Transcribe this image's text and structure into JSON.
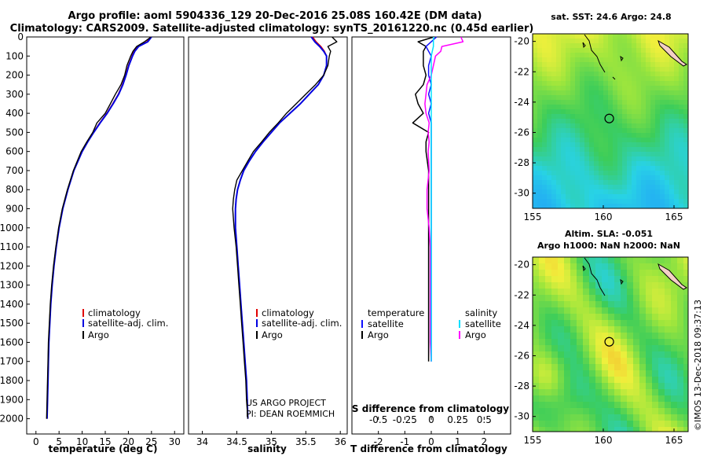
{
  "title": {
    "line1": "Argo profile: aoml 5904336_129 20-Dec-2016 25.08S 160.42E (DM data)",
    "line2": "Climatology: CARS2009. Satellite-adjusted climatology: synTS_20161220.nc (0.45d earlier)"
  },
  "colors": {
    "climatology": "#e00000",
    "satellite": "#0000e0",
    "argo": "#000000",
    "temp_diff": "#000000",
    "sat_temp_diff": "#1010ff",
    "sal_diff": "#ff00ff",
    "sat_sal_diff": "#00e0ff"
  },
  "chart_data": [
    {
      "type": "line",
      "name": "temperature",
      "xlabel": "temperature (deg C)",
      "ylabel": "depth",
      "xlim": [
        -2,
        32
      ],
      "ylim": [
        0,
        2080
      ],
      "xticks": [
        0,
        5,
        10,
        15,
        20,
        25,
        30
      ],
      "yticks": [
        0,
        100,
        200,
        300,
        400,
        500,
        600,
        700,
        800,
        900,
        1000,
        1100,
        1200,
        1300,
        1400,
        1500,
        1600,
        1700,
        1800,
        1900,
        2000
      ],
      "depth": [
        0,
        25,
        50,
        75,
        100,
        150,
        200,
        250,
        300,
        350,
        400,
        450,
        500,
        550,
        600,
        700,
        800,
        900,
        1000,
        1100,
        1200,
        1300,
        1400,
        1500,
        1600,
        1700,
        1800,
        1900,
        2000
      ],
      "series": [
        {
          "name": "climatology",
          "values": [
            24.8,
            24.0,
            22.0,
            21.2,
            20.8,
            20.0,
            19.4,
            18.7,
            17.8,
            16.6,
            15.3,
            13.8,
            12.4,
            11.2,
            10.0,
            8.2,
            6.9,
            5.8,
            5.0,
            4.4,
            3.9,
            3.5,
            3.2,
            3.0,
            2.8,
            2.7,
            2.6,
            2.5,
            2.4
          ]
        },
        {
          "name": "satellite-adj. clim.",
          "values": [
            25.0,
            24.2,
            22.2,
            21.4,
            20.9,
            20.1,
            19.5,
            18.8,
            17.9,
            16.7,
            15.4,
            13.9,
            12.5,
            11.2,
            10.0,
            8.2,
            6.9,
            5.8,
            5.0,
            4.4,
            3.9,
            3.5,
            3.2,
            3.0,
            2.8,
            2.7,
            2.6,
            2.5,
            2.4
          ]
        },
        {
          "name": "Argo",
          "values": [
            24.9,
            23.5,
            21.8,
            21.0,
            20.5,
            19.7,
            19.2,
            18.4,
            17.2,
            16.1,
            15.0,
            13.2,
            12.3,
            11.0,
            9.8,
            8.1,
            6.8,
            5.7,
            4.9,
            4.3,
            3.8,
            3.4,
            3.1,
            2.9,
            2.7,
            2.6,
            2.5,
            2.4,
            2.3
          ]
        }
      ],
      "legend": [
        "climatology",
        "satellite-adj. clim.",
        "Argo"
      ]
    },
    {
      "type": "line",
      "name": "salinity",
      "xlabel": "salinity",
      "xlim": [
        33.8,
        36.1
      ],
      "xticks": [
        34,
        34.5,
        35,
        35.5,
        36
      ],
      "xticklabels": [
        "34",
        "34.5",
        "35",
        "35.5",
        "36"
      ],
      "depth": [
        0,
        25,
        50,
        75,
        100,
        150,
        200,
        250,
        300,
        350,
        400,
        450,
        500,
        550,
        600,
        650,
        700,
        750,
        800,
        850,
        900,
        1000,
        1100,
        1200,
        1300,
        1400,
        1500,
        1600,
        1700,
        1800,
        1900,
        2000
      ],
      "series": [
        {
          "name": "climatology",
          "values": [
            35.6,
            35.65,
            35.72,
            35.77,
            35.8,
            35.8,
            35.76,
            35.68,
            35.55,
            35.42,
            35.27,
            35.12,
            35.0,
            34.88,
            34.77,
            34.68,
            34.6,
            34.55,
            34.51,
            34.49,
            34.48,
            34.48,
            34.5,
            34.52,
            34.54,
            34.56,
            34.58,
            34.6,
            34.62,
            34.64,
            34.65,
            34.66
          ]
        },
        {
          "name": "satellite-adj. clim.",
          "values": [
            35.58,
            35.63,
            35.7,
            35.76,
            35.8,
            35.8,
            35.76,
            35.68,
            35.55,
            35.42,
            35.27,
            35.12,
            35.0,
            34.88,
            34.77,
            34.68,
            34.6,
            34.55,
            34.51,
            34.49,
            34.48,
            34.48,
            34.5,
            34.52,
            34.54,
            34.56,
            34.58,
            34.6,
            34.62,
            34.64,
            34.65,
            34.66
          ]
        },
        {
          "name": "Argo",
          "values": [
            35.88,
            35.95,
            35.82,
            35.86,
            35.84,
            35.82,
            35.76,
            35.64,
            35.5,
            35.36,
            35.22,
            35.1,
            34.97,
            34.86,
            34.74,
            34.66,
            34.58,
            34.5,
            34.47,
            34.45,
            34.44,
            34.46,
            34.49,
            34.51,
            34.53,
            34.55,
            34.57,
            34.59,
            34.61,
            34.63,
            34.64,
            34.66
          ]
        }
      ],
      "legend": [
        "climatology",
        "satellite-adj. clim.",
        "Argo"
      ],
      "credit": [
        "US ARGO PROJECT",
        "PI: DEAN ROEMMICH"
      ]
    },
    {
      "type": "line",
      "name": "differences",
      "xlabel": "T difference from climatology",
      "xlabel_top": "S difference from climatology",
      "xlim": [
        -3,
        3
      ],
      "xticks": [
        -2,
        -1,
        0,
        1,
        2
      ],
      "xticklabels": [
        "-2",
        "-1",
        "0",
        "1",
        "2"
      ],
      "sticks": [
        -0.5,
        -0.25,
        0,
        0.25,
        0.5
      ],
      "sticklabels": [
        "-0.5",
        "-0.25",
        "0",
        "0.25",
        "0.5"
      ],
      "s_scale": 4,
      "depth": [
        0,
        25,
        50,
        75,
        100,
        150,
        200,
        250,
        300,
        350,
        400,
        450,
        500,
        550,
        600,
        700,
        800,
        900,
        1000,
        1100,
        1200,
        1300,
        1400,
        1500,
        1600,
        1700
      ],
      "series": [
        {
          "name": "temperature Argo",
          "values": [
            0.1,
            -0.5,
            -0.2,
            -0.3,
            -0.3,
            -0.3,
            -0.2,
            -0.3,
            -0.6,
            -0.5,
            -0.3,
            -0.7,
            -0.1,
            -0.2,
            -0.2,
            -0.1,
            -0.1,
            -0.1,
            -0.1,
            -0.1,
            -0.1,
            -0.1,
            -0.1,
            -0.1,
            -0.1,
            -0.1
          ]
        },
        {
          "name": "temperature satellite",
          "values": [
            0.2,
            0.0,
            -0.2,
            -0.1,
            0.0,
            -0.1,
            -0.1,
            0.0,
            -0.1,
            0.0,
            -0.1,
            0.0,
            0.0,
            0.0,
            0.0,
            0.0,
            0.0,
            0.0,
            0.0,
            0.0,
            0.0,
            0.0,
            0.0,
            0.0,
            0.0,
            0.0
          ]
        },
        {
          "name": "salinity Argo",
          "values": [
            0.28,
            0.3,
            0.1,
            0.09,
            0.04,
            0.02,
            0.0,
            -0.04,
            -0.05,
            -0.06,
            -0.05,
            -0.02,
            -0.03,
            -0.02,
            -0.03,
            -0.02,
            -0.04,
            -0.04,
            -0.02,
            -0.01,
            -0.01,
            -0.01,
            -0.01,
            -0.01,
            -0.01,
            0.0
          ]
        },
        {
          "name": "salinity satellite",
          "values": [
            0.02,
            0.02,
            0.02,
            0.01,
            0.0,
            0.0,
            0.0,
            0.0,
            0.0,
            0.0,
            0.0,
            0.0,
            0.0,
            0.0,
            0.0,
            0.0,
            0.0,
            0.0,
            0.0,
            0.0,
            0.0,
            0.0,
            0.0,
            0.0,
            0.0,
            0.0
          ]
        }
      ],
      "legend_left": {
        "header": "temperature",
        "items": [
          "satellite",
          "Argo"
        ]
      },
      "legend_right": {
        "header": "salinity",
        "items": [
          "satellite",
          "Argo"
        ]
      }
    },
    {
      "type": "heatmap",
      "name": "sst_map",
      "title": "sat. SST: 24.6 Argo: 24.8",
      "xlim": [
        155,
        166
      ],
      "ylim": [
        -31,
        -19.5
      ],
      "xticks": [
        155,
        160,
        165
      ],
      "yticks": [
        -20,
        -22,
        -24,
        -26,
        -28,
        -30
      ],
      "ytickprefix": "-",
      "argo_position": {
        "lon": 160.42,
        "lat": -25.08
      }
    },
    {
      "type": "heatmap",
      "name": "sla_map",
      "title": "Altim. SLA: -0.051",
      "subtitle": "Argo h1000: NaN h2000: NaN",
      "xlim": [
        155,
        166
      ],
      "ylim": [
        -31,
        -19.5
      ],
      "xticks": [
        155,
        160,
        165
      ],
      "yticks": [
        -20,
        -22,
        -24,
        -26,
        -28,
        -30
      ],
      "argo_position": {
        "lon": 160.42,
        "lat": -25.08
      }
    }
  ],
  "footer_stamp": "©IMOS 13-Dec-2018 09:37:13"
}
